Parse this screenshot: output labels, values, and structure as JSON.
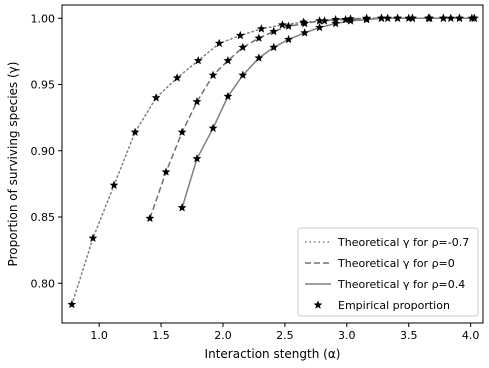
{
  "chart_data": {
    "type": "line",
    "title": "",
    "xlabel": "Interaction stength (α)",
    "ylabel": "Proportion of surviving species (γ)",
    "xlim": [
      0.7,
      4.1
    ],
    "ylim": [
      0.77,
      1.01
    ],
    "xticks": [
      1.0,
      1.5,
      2.0,
      2.5,
      3.0,
      3.5,
      4.0
    ],
    "xtick_labels": [
      "1.0",
      "1.5",
      "2.0",
      "2.5",
      "3.0",
      "3.5",
      "4.0"
    ],
    "yticks": [
      0.8,
      0.85,
      0.9,
      0.95,
      1.0
    ],
    "ytick_labels": [
      "0.80",
      "0.85",
      "0.90",
      "0.95",
      "1.00"
    ],
    "grid": false,
    "legend_position": "lower-right",
    "series": [
      {
        "name": "Theoretical γ for ρ=-0.7",
        "style": "dotted",
        "color": "#808080",
        "x": [
          0.78,
          0.95,
          1.12,
          1.29,
          1.46,
          1.63,
          1.8,
          1.97,
          2.14,
          2.31,
          2.48,
          2.65,
          2.82,
          2.99,
          3.16,
          3.33,
          3.5,
          3.67,
          3.84,
          4.01
        ],
        "y": [
          0.784,
          0.834,
          0.874,
          0.914,
          0.94,
          0.955,
          0.968,
          0.981,
          0.987,
          0.992,
          0.995,
          0.997,
          0.998,
          0.999,
          0.9995,
          1.0,
          1.0,
          1.0,
          1.0,
          1.0
        ]
      },
      {
        "name": "Theoretical γ for ρ=0",
        "style": "dashed",
        "color": "#707070",
        "x": [
          1.41,
          1.54,
          1.67,
          1.79,
          1.92,
          2.04,
          2.16,
          2.29,
          2.41,
          2.53,
          2.66,
          2.78,
          2.91,
          3.03,
          3.16,
          3.28,
          3.41,
          3.53,
          3.66,
          3.78,
          3.91,
          4.03
        ],
        "y": [
          0.849,
          0.884,
          0.914,
          0.937,
          0.957,
          0.968,
          0.978,
          0.985,
          0.99,
          0.994,
          0.996,
          0.998,
          0.999,
          0.9995,
          1.0,
          1.0,
          1.0,
          1.0,
          1.0,
          1.0,
          1.0,
          1.0
        ]
      },
      {
        "name": "Theoretical γ for ρ=0.4",
        "style": "solid",
        "color": "#808080",
        "x": [
          1.67,
          1.79,
          1.92,
          2.04,
          2.16,
          2.29,
          2.41,
          2.53,
          2.66,
          2.78,
          2.91,
          3.03,
          3.16,
          3.28,
          3.41,
          3.53,
          3.66,
          3.78,
          3.91,
          4.03
        ],
        "y": [
          0.857,
          0.894,
          0.917,
          0.941,
          0.957,
          0.97,
          0.978,
          0.984,
          0.989,
          0.993,
          0.996,
          0.998,
          0.999,
          1.0,
          1.0,
          1.0,
          1.0,
          1.0,
          1.0,
          1.0
        ]
      },
      {
        "name": "Empirical proportion",
        "style": "markers",
        "marker": "star",
        "color": "#000000",
        "x": [
          0.78,
          0.95,
          1.12,
          1.29,
          1.46,
          1.63,
          1.8,
          1.97,
          2.14,
          2.31,
          2.48,
          2.65,
          2.82,
          2.99,
          3.16,
          3.33,
          3.5,
          3.67,
          3.84,
          4.01,
          1.41,
          1.54,
          1.67,
          1.79,
          1.92,
          2.04,
          2.16,
          2.29,
          2.41,
          2.53,
          2.66,
          2.78,
          2.91,
          3.03,
          3.16,
          3.28,
          3.41,
          3.53,
          3.66,
          3.78,
          3.91,
          4.03,
          1.67,
          1.79,
          1.92,
          2.04,
          2.16,
          2.29,
          2.41,
          2.53,
          2.66,
          2.78,
          2.91,
          3.03,
          3.16,
          3.28,
          3.41,
          3.53,
          3.66,
          3.78,
          3.91,
          4.03
        ],
        "y": [
          0.784,
          0.834,
          0.874,
          0.914,
          0.94,
          0.955,
          0.968,
          0.981,
          0.987,
          0.992,
          0.995,
          0.997,
          0.998,
          0.999,
          0.9995,
          1.0,
          1.0,
          1.0,
          1.0,
          1.0,
          0.849,
          0.884,
          0.914,
          0.937,
          0.957,
          0.968,
          0.978,
          0.985,
          0.99,
          0.994,
          0.996,
          0.998,
          0.999,
          0.9995,
          1.0,
          1.0,
          1.0,
          1.0,
          1.0,
          1.0,
          1.0,
          1.0,
          0.857,
          0.894,
          0.917,
          0.941,
          0.957,
          0.97,
          0.978,
          0.984,
          0.989,
          0.993,
          0.996,
          0.998,
          0.999,
          1.0,
          1.0,
          1.0,
          1.0,
          1.0,
          1.0,
          1.0
        ]
      }
    ]
  }
}
